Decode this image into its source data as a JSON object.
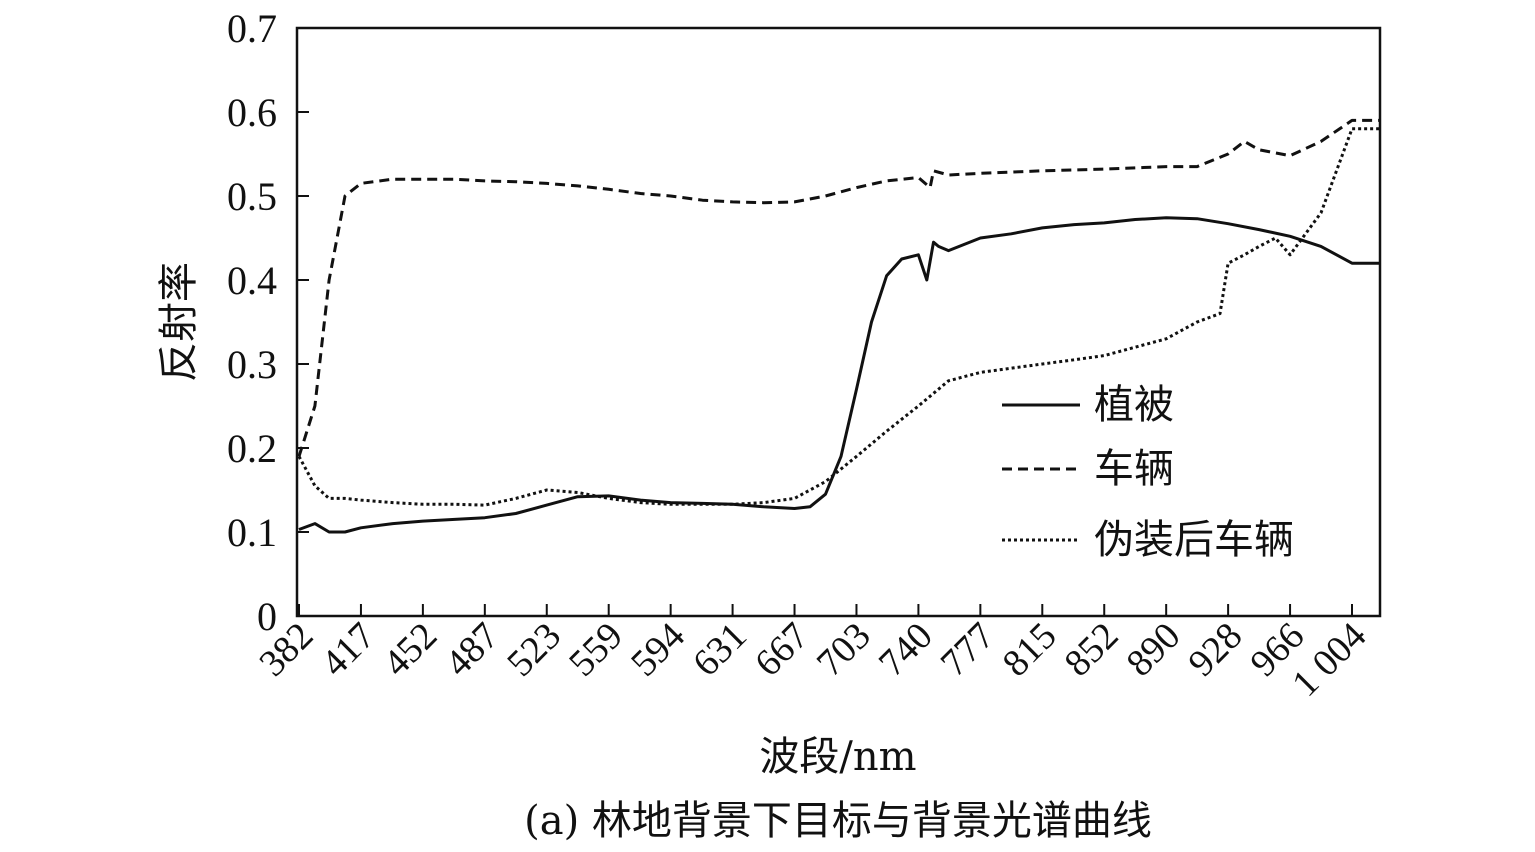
{
  "chart_data": {
    "type": "line",
    "title": "",
    "caption": "(a) 林地背景下目标与背景光谱曲线",
    "xlabel": "波段/nm",
    "ylabel": "反射率",
    "ylim": [
      0,
      0.7
    ],
    "yticks": [
      "0",
      "0.1",
      "0.2",
      "0.3",
      "0.4",
      "0.5",
      "0.6",
      "0.7"
    ],
    "xticks": [
      "382",
      "417",
      "452",
      "487",
      "523",
      "559",
      "594",
      "631",
      "667",
      "703",
      "740",
      "777",
      "815",
      "852",
      "890",
      "928",
      "966",
      "1 004"
    ],
    "grid": false,
    "legend_position": "right-middle",
    "series": [
      {
        "name": "植被",
        "style": "solid",
        "x": [
          "382",
          "391",
          "399",
          "408",
          "417",
          "435",
          "452",
          "470",
          "487",
          "505",
          "523",
          "541",
          "559",
          "577",
          "594",
          "613",
          "631",
          "649",
          "667",
          "676",
          "685",
          "694",
          "703",
          "712",
          "721",
          "730",
          "740",
          "745",
          "749",
          "752",
          "758",
          "777",
          "796",
          "815",
          "834",
          "852",
          "871",
          "890",
          "909",
          "928",
          "947",
          "966",
          "985",
          "1 004"
        ],
        "values": [
          0.103,
          0.11,
          0.1,
          0.1,
          0.105,
          0.11,
          0.113,
          0.115,
          0.117,
          0.122,
          0.132,
          0.142,
          0.143,
          0.138,
          0.135,
          0.134,
          0.133,
          0.13,
          0.128,
          0.13,
          0.145,
          0.19,
          0.27,
          0.35,
          0.405,
          0.425,
          0.43,
          0.4,
          0.445,
          0.44,
          0.435,
          0.45,
          0.455,
          0.462,
          0.466,
          0.468,
          0.472,
          0.474,
          0.473,
          0.467,
          0.46,
          0.452,
          0.44,
          0.42
        ]
      },
      {
        "name": "车辆",
        "style": "dashed",
        "x": [
          "382",
          "391",
          "399",
          "408",
          "417",
          "435",
          "452",
          "470",
          "487",
          "505",
          "523",
          "541",
          "559",
          "577",
          "594",
          "613",
          "631",
          "649",
          "667",
          "685",
          "703",
          "721",
          "740",
          "747",
          "749",
          "758",
          "777",
          "815",
          "852",
          "890",
          "909",
          "928",
          "938",
          "947",
          "966",
          "985",
          "1 004"
        ],
        "values": [
          0.19,
          0.25,
          0.4,
          0.5,
          0.515,
          0.52,
          0.52,
          0.52,
          0.518,
          0.517,
          0.515,
          0.512,
          0.508,
          0.503,
          0.5,
          0.495,
          0.493,
          0.492,
          0.493,
          0.5,
          0.51,
          0.518,
          0.522,
          0.51,
          0.53,
          0.525,
          0.527,
          0.53,
          0.532,
          0.535,
          0.535,
          0.55,
          0.565,
          0.555,
          0.548,
          0.565,
          0.59
        ]
      },
      {
        "name": "伪装后车辆",
        "style": "dotted",
        "x": [
          "382",
          "391",
          "399",
          "408",
          "417",
          "435",
          "452",
          "470",
          "487",
          "505",
          "523",
          "541",
          "559",
          "577",
          "594",
          "613",
          "631",
          "649",
          "667",
          "685",
          "703",
          "721",
          "740",
          "758",
          "777",
          "796",
          "815",
          "834",
          "852",
          "871",
          "890",
          "909",
          "923",
          "928",
          "938",
          "947",
          "957",
          "966",
          "985",
          "1 004"
        ],
        "values": [
          0.19,
          0.155,
          0.14,
          0.14,
          0.138,
          0.135,
          0.133,
          0.133,
          0.132,
          0.14,
          0.15,
          0.147,
          0.14,
          0.135,
          0.133,
          0.133,
          0.133,
          0.135,
          0.14,
          0.16,
          0.19,
          0.22,
          0.25,
          0.28,
          0.29,
          0.295,
          0.3,
          0.305,
          0.31,
          0.32,
          0.33,
          0.35,
          0.36,
          0.42,
          0.43,
          0.44,
          0.45,
          0.43,
          0.48,
          0.58
        ]
      }
    ]
  }
}
